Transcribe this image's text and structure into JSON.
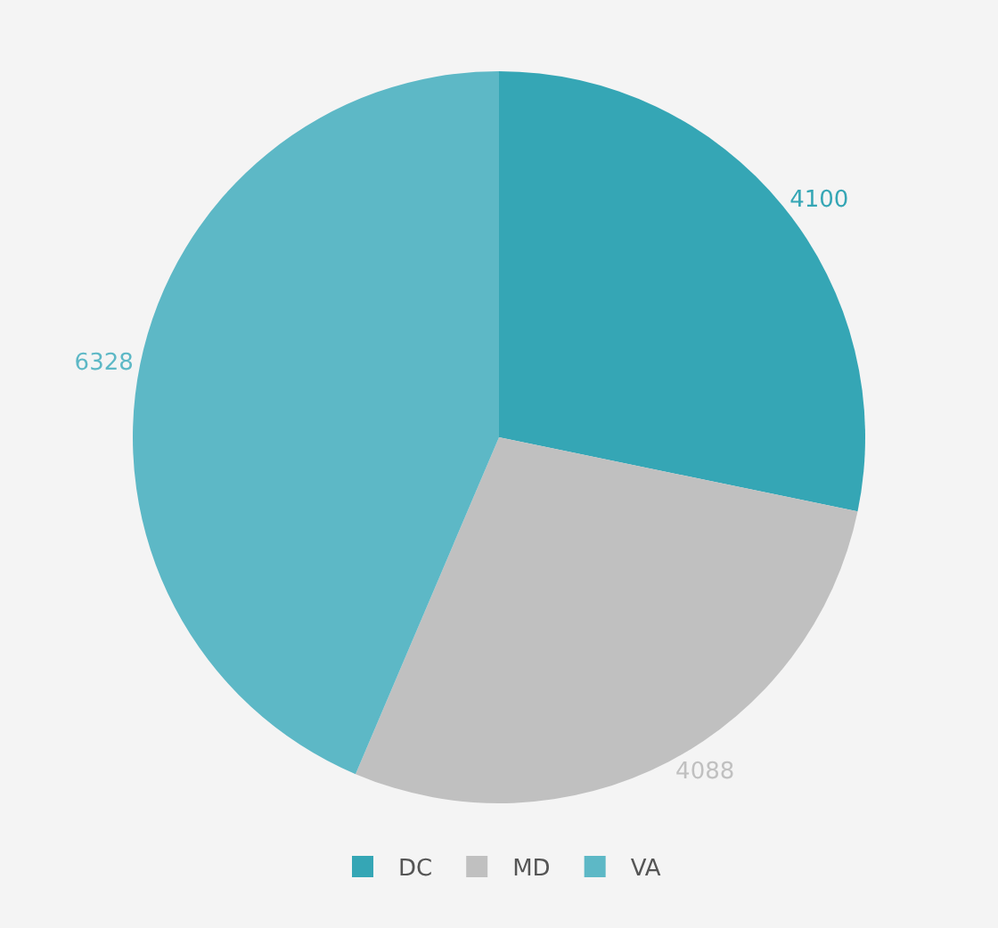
{
  "chart_data": {
    "type": "pie",
    "categories": [
      "DC",
      "MD",
      "VA"
    ],
    "values": [
      4100,
      4088,
      6328
    ],
    "colors": [
      "#35a6b5",
      "#c0c0c0",
      "#5db8c6"
    ],
    "data_labels": true,
    "legend": "bottom"
  }
}
